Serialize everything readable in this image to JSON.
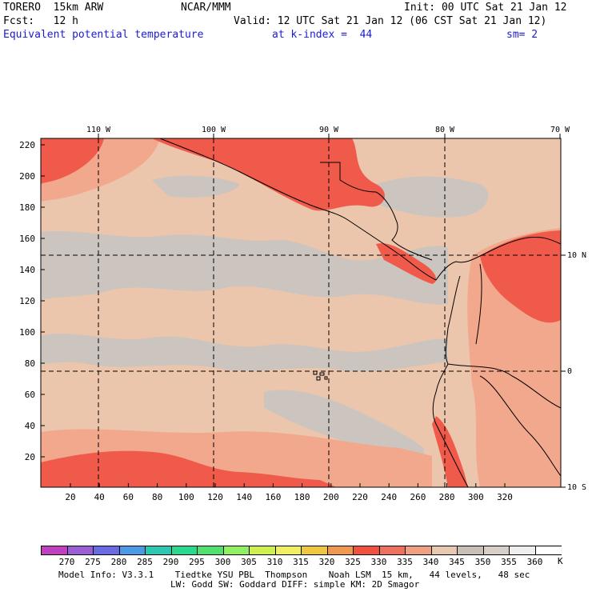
{
  "header": {
    "model": "TORERO  15km ARW",
    "org": "NCAR/MMM",
    "init": "Init: 00 UTC Sat 21 Jan 12",
    "fcst": "Fcst:   12 h",
    "valid": "Valid: 12 UTC Sat 21 Jan 12 (06 CST Sat 21 Jan 12)",
    "field": "Equivalent potential temperature",
    "level": "at k-index =  44",
    "smooth": "sm= 2"
  },
  "axes": {
    "top_labels": [
      "110 W",
      "100 W",
      "90 W",
      "80 W",
      "70 W"
    ],
    "right_labels": [
      "10 N",
      "0",
      "10 S"
    ],
    "left_labels": [
      "220",
      "200",
      "180",
      "160",
      "140",
      "120",
      "100",
      "80",
      "60",
      "40",
      "20"
    ],
    "bottom_labels": [
      "20",
      "40",
      "60",
      "80",
      "100",
      "120",
      "140",
      "160",
      "180",
      "200",
      "220",
      "240",
      "260",
      "280",
      "300",
      "320"
    ]
  },
  "colorbar": {
    "labels": [
      "270",
      "275",
      "280",
      "285",
      "290",
      "295",
      "300",
      "305",
      "310",
      "315",
      "320",
      "325",
      "330",
      "335",
      "340",
      "345",
      "350",
      "355",
      "360"
    ],
    "unit": "K",
    "colors": [
      "#c040c0",
      "#9a5fd6",
      "#6a6ae6",
      "#4a9ae6",
      "#2ac8b0",
      "#2ad890",
      "#50e070",
      "#90f060",
      "#d0f050",
      "#f0f060",
      "#f0c840",
      "#f09850",
      "#f05040",
      "#f07060",
      "#f0a080",
      "#e8c8b0",
      "#c8c0b8",
      "#d8d0c8",
      "#eeeeee",
      "#ffffff"
    ]
  },
  "footer": {
    "line1": "Model Info: V3.3.1    Tiedtke YSU PBL  Thompson    Noah LSM  15 km,   44 levels,   48 sec",
    "line2": "LW: Godd SW: Goddard DIFF: simple KM: 2D Smagor"
  },
  "palette": {
    "warm_red": "#f05a4a",
    "salmon": "#f2a88c",
    "beige": "#ecc6ac",
    "gray": "#ccc4be",
    "light_gray": "#d8d6d4"
  }
}
